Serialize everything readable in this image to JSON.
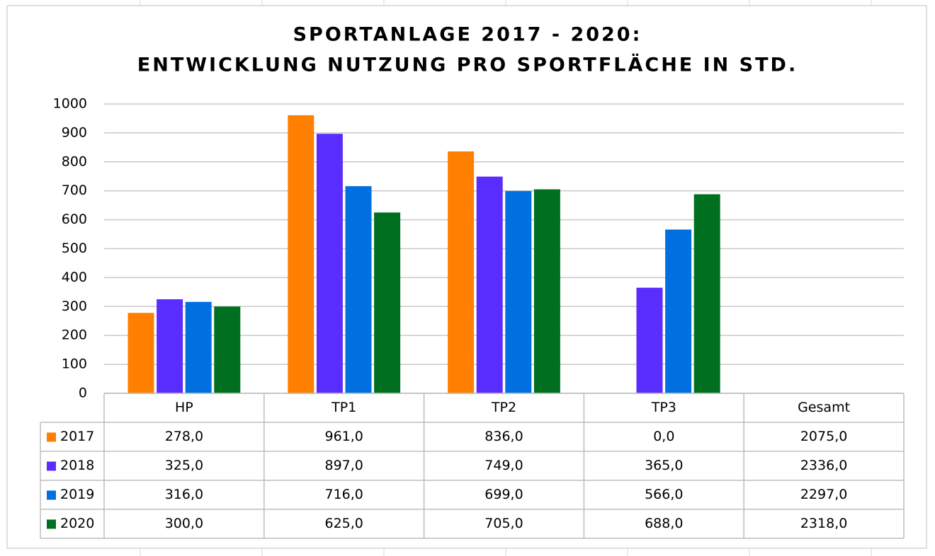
{
  "chart_data": {
    "type": "bar",
    "title": "SPORTANLAGE 2017 - 2020:",
    "subtitle": "ENTWICKLUNG NUTZUNG PRO SPORTFLÄCHE IN STD.",
    "categories": [
      "HP",
      "TP1",
      "TP2",
      "TP3"
    ],
    "total_header": "Gesamt",
    "series": [
      {
        "name": "2017",
        "color": "#ff8000",
        "values": [
          278,
          961,
          836,
          0
        ],
        "value_labels": [
          "278,0",
          "961,0",
          "836,0",
          "0,0"
        ],
        "total": 2075,
        "total_label": "2075,0"
      },
      {
        "name": "2018",
        "color": "#5a2dff",
        "values": [
          325,
          897,
          749,
          365
        ],
        "value_labels": [
          "325,0",
          "897,0",
          "749,0",
          "365,0"
        ],
        "total": 2336,
        "total_label": "2336,0"
      },
      {
        "name": "2019",
        "color": "#0070e0",
        "values": [
          316,
          716,
          699,
          566
        ],
        "value_labels": [
          "316,0",
          "716,0",
          "699,0",
          "566,0"
        ],
        "total": 2297,
        "total_label": "2297,0"
      },
      {
        "name": "2020",
        "color": "#007020",
        "values": [
          300,
          625,
          705,
          688
        ],
        "value_labels": [
          "300,0",
          "625,0",
          "705,0",
          "688,0"
        ],
        "total": 2318,
        "total_label": "2318,0"
      }
    ],
    "ylim": [
      0,
      1000
    ],
    "yticks": [
      0,
      100,
      200,
      300,
      400,
      500,
      600,
      700,
      800,
      900,
      1000
    ],
    "grid": true
  }
}
